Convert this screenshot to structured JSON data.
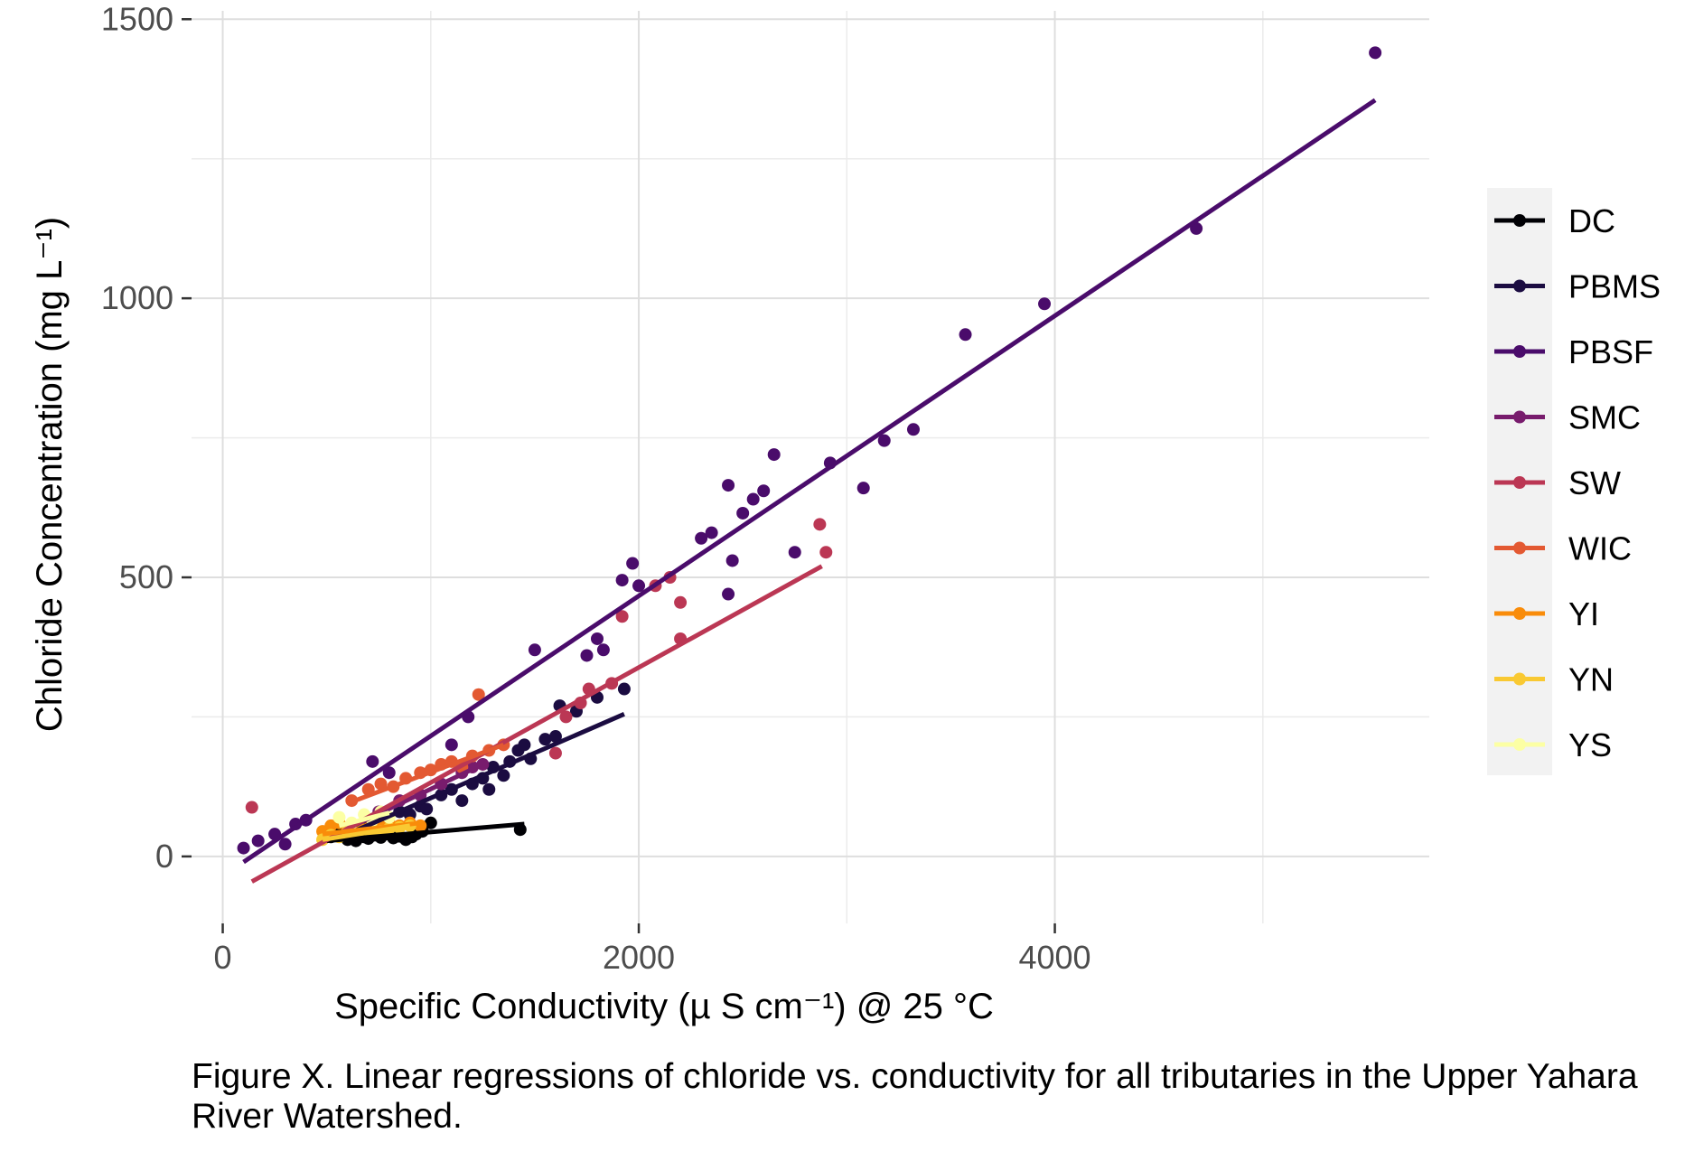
{
  "chart_data": {
    "type": "scatter",
    "title": "",
    "xlabel": "Specific Conductivity (µ S cm⁻¹) @ 25 °C",
    "ylabel": "Chloride Concentration (mg L⁻¹)",
    "xlim": [
      -150,
      5800
    ],
    "ylim": [
      -120,
      1515
    ],
    "x_ticks": [
      0,
      2000,
      4000
    ],
    "y_ticks": [
      0,
      500,
      1000,
      1500
    ],
    "grid": true,
    "legend_position": "right",
    "series": [
      {
        "name": "DC",
        "color": "#000004",
        "points": [
          [
            520,
            35
          ],
          [
            560,
            40
          ],
          [
            600,
            30
          ],
          [
            640,
            28
          ],
          [
            680,
            35
          ],
          [
            700,
            32
          ],
          [
            730,
            38
          ],
          [
            760,
            34
          ],
          [
            790,
            40
          ],
          [
            820,
            33
          ],
          [
            850,
            36
          ],
          [
            880,
            30
          ],
          [
            910,
            35
          ],
          [
            930,
            40
          ],
          [
            960,
            45
          ],
          [
            1000,
            60
          ],
          [
            1430,
            48
          ]
        ],
        "fit": [
          [
            500,
            28
          ],
          [
            1450,
            58
          ]
        ]
      },
      {
        "name": "PBMS",
        "color": "#1b0c41",
        "points": [
          [
            620,
            45
          ],
          [
            700,
            60
          ],
          [
            780,
            70
          ],
          [
            850,
            80
          ],
          [
            900,
            75
          ],
          [
            950,
            90
          ],
          [
            980,
            85
          ],
          [
            1050,
            110
          ],
          [
            1100,
            120
          ],
          [
            1150,
            100
          ],
          [
            1200,
            130
          ],
          [
            1250,
            140
          ],
          [
            1280,
            120
          ],
          [
            1300,
            160
          ],
          [
            1350,
            145
          ],
          [
            1380,
            170
          ],
          [
            1420,
            190
          ],
          [
            1450,
            200
          ],
          [
            1480,
            175
          ],
          [
            1550,
            210
          ],
          [
            1600,
            215
          ],
          [
            1620,
            270
          ],
          [
            1700,
            260
          ],
          [
            1800,
            285
          ],
          [
            1930,
            300
          ]
        ],
        "fit": [
          [
            600,
            40
          ],
          [
            1930,
            255
          ]
        ]
      },
      {
        "name": "PBSF",
        "color": "#4a0c6b",
        "points": [
          [
            100,
            15
          ],
          [
            170,
            28
          ],
          [
            250,
            40
          ],
          [
            300,
            22
          ],
          [
            350,
            58
          ],
          [
            400,
            65
          ],
          [
            720,
            170
          ],
          [
            800,
            150
          ],
          [
            1100,
            200
          ],
          [
            1180,
            250
          ],
          [
            1500,
            370
          ],
          [
            1750,
            360
          ],
          [
            1800,
            390
          ],
          [
            1830,
            370
          ],
          [
            1920,
            495
          ],
          [
            1970,
            525
          ],
          [
            2000,
            485
          ],
          [
            2300,
            570
          ],
          [
            2350,
            580
          ],
          [
            2430,
            665
          ],
          [
            2430,
            470
          ],
          [
            2450,
            530
          ],
          [
            2500,
            615
          ],
          [
            2550,
            640
          ],
          [
            2600,
            655
          ],
          [
            2650,
            720
          ],
          [
            2750,
            545
          ],
          [
            2920,
            705
          ],
          [
            3080,
            660
          ],
          [
            3180,
            745
          ],
          [
            3320,
            765
          ],
          [
            3570,
            935
          ],
          [
            3950,
            990
          ],
          [
            4680,
            1125
          ],
          [
            5540,
            1440
          ]
        ],
        "fit": [
          [
            100,
            -10
          ],
          [
            5540,
            1355
          ]
        ]
      },
      {
        "name": "SMC",
        "color": "#781c6d",
        "points": [
          [
            600,
            50
          ],
          [
            750,
            80
          ],
          [
            850,
            100
          ],
          [
            950,
            110
          ],
          [
            1050,
            130
          ],
          [
            1150,
            150
          ],
          [
            1200,
            160
          ],
          [
            1250,
            165
          ]
        ],
        "fit": [
          [
            600,
            50
          ],
          [
            1250,
            165
          ]
        ]
      },
      {
        "name": "SW",
        "color": "#bb3754",
        "points": [
          [
            140,
            88
          ],
          [
            1600,
            185
          ],
          [
            1650,
            250
          ],
          [
            1720,
            275
          ],
          [
            1760,
            300
          ],
          [
            1870,
            310
          ],
          [
            1920,
            430
          ],
          [
            2080,
            485
          ],
          [
            2150,
            500
          ],
          [
            2200,
            390
          ],
          [
            2200,
            455
          ],
          [
            2870,
            595
          ],
          [
            2900,
            545
          ]
        ],
        "fit": [
          [
            140,
            -45
          ],
          [
            2880,
            520
          ]
        ]
      },
      {
        "name": "WIC",
        "color": "#e35932",
        "points": [
          [
            620,
            100
          ],
          [
            700,
            120
          ],
          [
            760,
            130
          ],
          [
            820,
            125
          ],
          [
            880,
            140
          ],
          [
            950,
            150
          ],
          [
            1000,
            155
          ],
          [
            1050,
            165
          ],
          [
            1100,
            170
          ],
          [
            1150,
            160
          ],
          [
            1200,
            180
          ],
          [
            1230,
            290
          ],
          [
            1280,
            190
          ],
          [
            1350,
            200
          ]
        ],
        "fit": [
          [
            600,
            95
          ],
          [
            1350,
            200
          ]
        ]
      },
      {
        "name": "YI",
        "color": "#f98c0a",
        "points": [
          [
            480,
            45
          ],
          [
            520,
            55
          ],
          [
            560,
            60
          ],
          [
            600,
            50
          ],
          [
            650,
            55
          ],
          [
            700,
            50
          ],
          [
            750,
            55
          ],
          [
            800,
            60
          ],
          [
            850,
            55
          ],
          [
            900,
            60
          ],
          [
            950,
            55
          ]
        ],
        "fit": [
          [
            480,
            40
          ],
          [
            950,
            60
          ]
        ]
      },
      {
        "name": "YN",
        "color": "#f9c932",
        "points": [
          [
            480,
            30
          ],
          [
            520,
            38
          ],
          [
            560,
            35
          ],
          [
            600,
            45
          ],
          [
            640,
            40
          ],
          [
            680,
            42
          ],
          [
            720,
            48
          ],
          [
            760,
            45
          ],
          [
            800,
            50
          ],
          [
            850,
            52
          ],
          [
            900,
            55
          ]
        ],
        "fit": [
          [
            480,
            30
          ],
          [
            900,
            55
          ]
        ]
      },
      {
        "name": "YS",
        "color": "#fcffa4",
        "points": [
          [
            560,
            70
          ],
          [
            620,
            60
          ],
          [
            680,
            75
          ],
          [
            720,
            65
          ],
          [
            760,
            80
          ],
          [
            800,
            70
          ]
        ],
        "fit": [
          [
            560,
            55
          ],
          [
            800,
            78
          ]
        ]
      }
    ]
  },
  "caption": "Figure X. Linear regressions of chloride vs. conductivity for all tributaries in the Upper Yahara River Watershed."
}
